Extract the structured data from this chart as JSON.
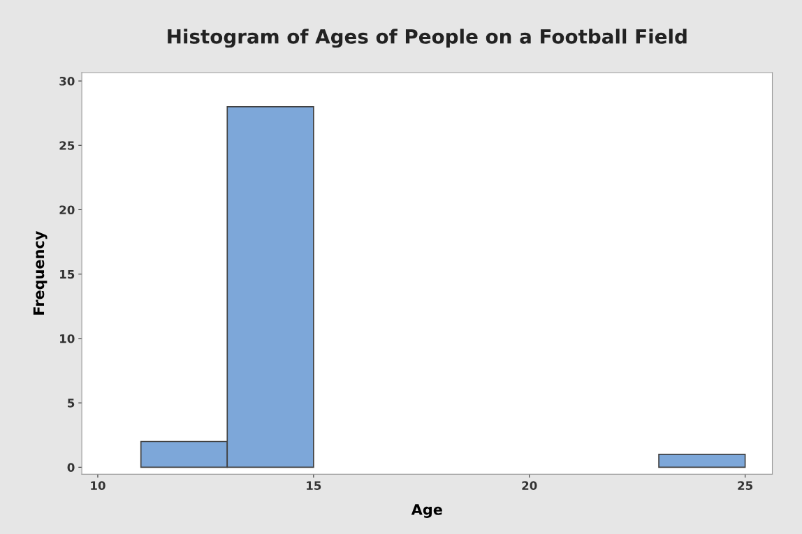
{
  "chart_data": {
    "type": "histogram",
    "title": "Histogram of Ages of People on a Football Field",
    "xlabel": "Age",
    "ylabel": "Frequency",
    "bins": [
      11,
      13,
      15,
      17,
      19,
      21,
      23,
      25
    ],
    "values": [
      2,
      28,
      0,
      0,
      0,
      0,
      1
    ],
    "color": "#7da7d9",
    "xlim": [
      9.63,
      25.63
    ],
    "xticks": [
      10,
      15,
      20,
      25
    ],
    "ylim": [
      -0.54,
      30.65
    ],
    "yticks": [
      0,
      5,
      10,
      15,
      20,
      25,
      30
    ],
    "grid": false
  }
}
